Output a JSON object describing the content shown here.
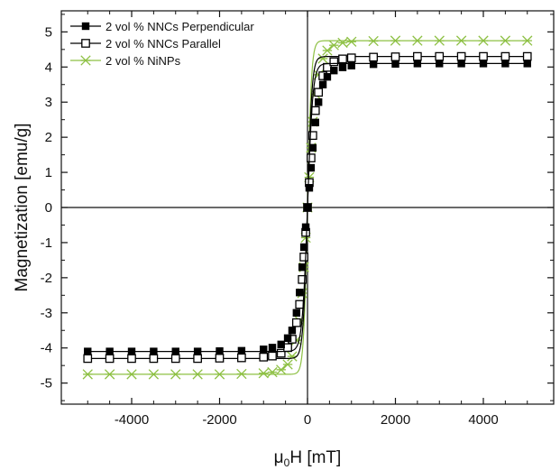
{
  "chart_data": {
    "type": "scatter",
    "title": "",
    "xlabel": "μ",
    "xlabel_sub": "0",
    "xlabel_tail": "H [mT]",
    "ylabel": "Magnetization [emu/g]",
    "xlim": [
      -5600,
      5600
    ],
    "ylim": [
      -5.6,
      5.6
    ],
    "xticks": [
      -4000,
      -2000,
      0,
      2000,
      4000
    ],
    "xtick_labels": [
      "-4000",
      "-2000",
      "0",
      "2000",
      "4000"
    ],
    "yticks": [
      -5,
      -4,
      -3,
      -2,
      -1,
      0,
      1,
      2,
      3,
      4,
      5
    ],
    "ytick_labels": [
      "-5",
      "-4",
      "-3",
      "-2",
      "-1",
      "0",
      "1",
      "2",
      "3",
      "4",
      "5"
    ],
    "grid": false,
    "legend_position": "top-left",
    "series": [
      {
        "name": "2 vol % NNCs Perpendicular",
        "marker": "filled-square",
        "color": "#000000",
        "ms": 4.1,
        "k": 120,
        "x": [
          -5000,
          -4500,
          -4000,
          -3500,
          -3000,
          -2500,
          -2000,
          -1500,
          -1000,
          -800,
          -600,
          -450,
          -350,
          -250,
          -180,
          -120,
          -80,
          -40,
          0,
          40,
          80,
          120,
          180,
          250,
          350,
          450,
          600,
          800,
          1000,
          1500,
          2000,
          2500,
          3000,
          3500,
          4000,
          4500,
          5000
        ],
        "y": [
          -4.1,
          -4.1,
          -4.1,
          -4.1,
          -4.1,
          -4.1,
          -4.09,
          -4.08,
          -4.04,
          -3.99,
          -3.9,
          -3.72,
          -3.5,
          -3.0,
          -2.42,
          -1.7,
          -1.13,
          -0.56,
          0,
          0.56,
          1.13,
          1.7,
          2.42,
          3.0,
          3.5,
          3.72,
          3.9,
          3.99,
          4.04,
          4.08,
          4.09,
          4.1,
          4.1,
          4.1,
          4.1,
          4.1,
          4.1
        ]
      },
      {
        "name": "2 vol % NNCs Parallel",
        "marker": "open-square",
        "color": "#000000",
        "ms": 4.3,
        "k": 100,
        "x": [
          -5000,
          -4500,
          -4000,
          -3500,
          -3000,
          -2500,
          -2000,
          -1500,
          -1000,
          -800,
          -600,
          -450,
          -350,
          -250,
          -180,
          -120,
          -80,
          -40,
          0,
          40,
          80,
          120,
          180,
          250,
          350,
          450,
          600,
          800,
          1000,
          1500,
          2000,
          2500,
          3000,
          3500,
          4000,
          4500,
          5000
        ],
        "y": [
          -4.3,
          -4.3,
          -4.3,
          -4.3,
          -4.3,
          -4.3,
          -4.29,
          -4.28,
          -4.26,
          -4.23,
          -4.15,
          -3.99,
          -3.75,
          -3.28,
          -2.76,
          -2.05,
          -1.41,
          -0.71,
          0,
          0.71,
          1.41,
          2.05,
          2.76,
          3.28,
          3.75,
          3.99,
          4.15,
          4.23,
          4.26,
          4.28,
          4.29,
          4.3,
          4.3,
          4.3,
          4.3,
          4.3,
          4.3
        ]
      },
      {
        "name": "2 vol % NiNPs",
        "marker": "star",
        "color": "#8dc043",
        "ms": 4.75,
        "k": 90,
        "x": [
          -5000,
          -4500,
          -4000,
          -3500,
          -3000,
          -2500,
          -2000,
          -1500,
          -1000,
          -800,
          -600,
          -450,
          -350,
          -250,
          -180,
          -120,
          -80,
          -40,
          0,
          40,
          80,
          120,
          180,
          250,
          350,
          450,
          600,
          800,
          1000,
          1500,
          2000,
          2500,
          3000,
          3500,
          4000,
          4500,
          5000
        ],
        "y": [
          -4.75,
          -4.75,
          -4.75,
          -4.75,
          -4.75,
          -4.75,
          -4.75,
          -4.74,
          -4.72,
          -4.69,
          -4.62,
          -4.47,
          -4.24,
          -3.78,
          -3.23,
          -2.44,
          -1.7,
          -0.86,
          0,
          0.86,
          1.7,
          2.44,
          3.23,
          3.78,
          4.24,
          4.47,
          4.62,
          4.69,
          4.72,
          4.74,
          4.75,
          4.75,
          4.75,
          4.75,
          4.75,
          4.75,
          4.75
        ]
      }
    ]
  }
}
